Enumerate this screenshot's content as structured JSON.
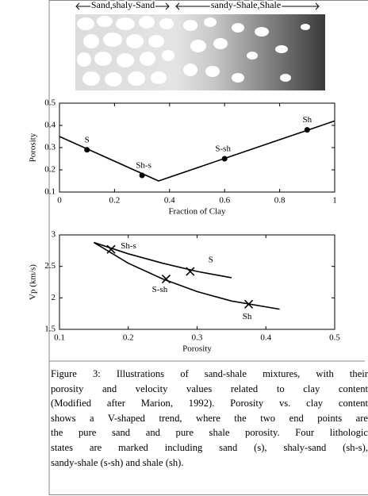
{
  "illustration": {
    "labels": [
      "Sand,shaly-Sand",
      "sandy-Shale,Shale"
    ]
  },
  "chart_data": [
    {
      "type": "line",
      "xlabel": "Fraction of Clay",
      "ylabel": "Porosity",
      "xlim": [
        0,
        1
      ],
      "xticks": [
        0,
        0.2,
        0.4,
        0.6,
        0.8,
        1
      ],
      "ylim": [
        0.1,
        0.5
      ],
      "yticks": [
        0.1,
        0.2,
        0.3,
        0.4,
        0.5
      ],
      "color": "#000000",
      "marker": "circle",
      "lines": [
        {
          "x": [
            0,
            0.36,
            1
          ],
          "values": [
            0.35,
            0.15,
            0.42
          ]
        }
      ],
      "points": {
        "x": [
          0.1,
          0.3,
          0.6,
          0.9
        ],
        "values": [
          0.29,
          0.175,
          0.25,
          0.38
        ],
        "labels": [
          "S",
          "Sh-s",
          "S-sh",
          "Sh"
        ]
      }
    },
    {
      "type": "line",
      "xlabel": "Porosity",
      "ylabel": "Vp (km/s)",
      "xlim": [
        0.1,
        0.5
      ],
      "xticks": [
        0.1,
        0.2,
        0.3,
        0.4,
        0.5
      ],
      "ylim": [
        1.5,
        3
      ],
      "yticks": [
        1.5,
        2,
        2.5,
        3
      ],
      "color": "#000000",
      "marker": "x",
      "lines": [
        {
          "x": [
            0.15,
            0.2,
            0.25,
            0.3,
            0.35
          ],
          "values": [
            2.88,
            2.7,
            2.55,
            2.42,
            2.32
          ]
        },
        {
          "x": [
            0.15,
            0.2,
            0.25,
            0.3,
            0.35,
            0.42
          ],
          "values": [
            2.88,
            2.55,
            2.3,
            2.1,
            1.95,
            1.82
          ]
        }
      ],
      "points": {
        "x": [
          0.175,
          0.29,
          0.255,
          0.375
        ],
        "values": [
          2.77,
          2.42,
          2.3,
          1.9
        ],
        "labels": [
          "Sh-s",
          "S",
          "S-sh",
          "Sh"
        ]
      }
    }
  ],
  "caption": [
    "Figure 3: Illustrations of sand-shale mixtures, with their",
    "porosity and velocity values related to clay content",
    "(Modified after Marion, 1992). Porosity vs. clay content",
    "shows a V-shaped trend, where the two end points are",
    "the pure sand and pure shale porosity. Four lithologic",
    "states are marked including sand (s), shaly-sand (sh-s),",
    "sandy-shale (s-sh) and shale (sh)."
  ]
}
